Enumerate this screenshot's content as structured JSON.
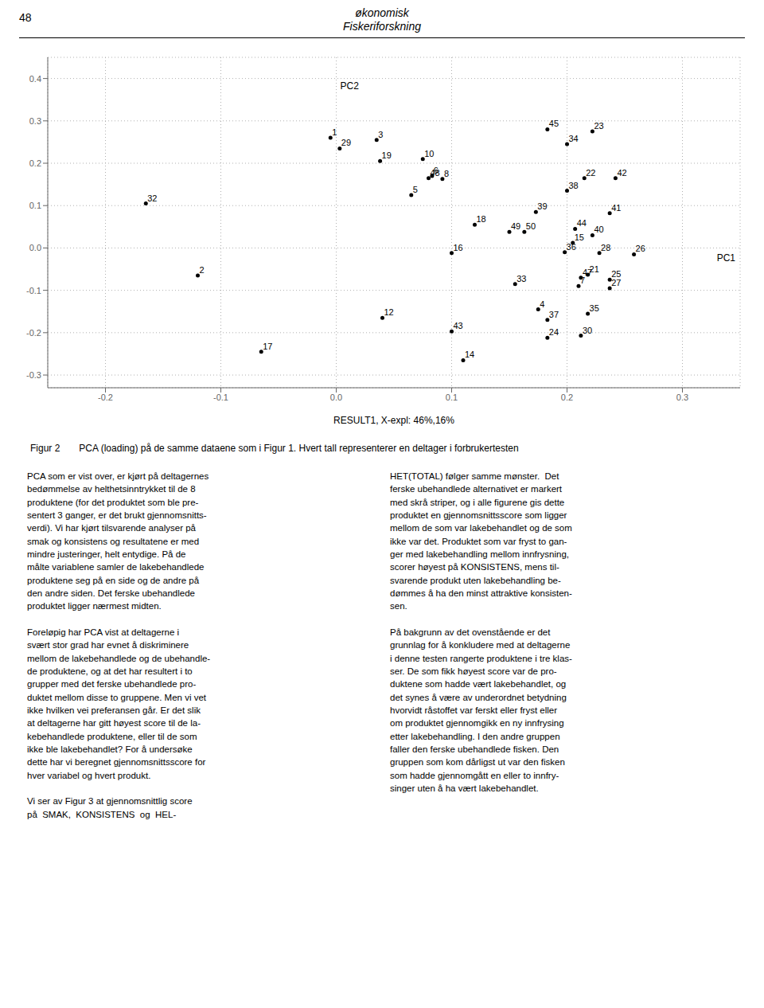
{
  "chart_data": {
    "type": "scatter",
    "title": "økonomisk",
    "subtitle": "Fiskeriforskning",
    "xlabel": "RESULT1, X-expl: 46%,16%",
    "xlim": [
      -0.25,
      0.35
    ],
    "ylim": [
      -0.33,
      0.45
    ],
    "xticks": [
      -0.2,
      -0.1,
      {
        "value": 0,
        "label": "0.0"
      },
      0.1,
      0.2,
      0.3
    ],
    "yticks": [
      -0.3,
      -0.2,
      -0.1,
      {
        "value": 0,
        "label": "0.0"
      },
      0.1,
      0.2,
      0.3,
      0.4
    ],
    "grid": true,
    "color": "#000000",
    "labels": [
      "1",
      "2",
      "3",
      "4",
      "5",
      "6",
      "7",
      "8",
      "10",
      "12",
      "14",
      "15",
      "16",
      "17",
      "18",
      "19",
      "21",
      "22",
      "23",
      "24",
      "25",
      "26",
      "27",
      "28",
      "29",
      "30",
      "32",
      "33",
      "34",
      "35",
      "36",
      "37",
      "38",
      "39",
      "40",
      "41",
      "42",
      "43",
      "44",
      "45",
      "47",
      "48",
      "49",
      "50"
    ],
    "x": [
      -0.005,
      -0.12,
      0.035,
      0.175,
      0.065,
      0.083,
      0.21,
      0.092,
      0.075,
      0.04,
      0.11,
      0.205,
      0.1,
      -0.065,
      0.12,
      0.038,
      0.218,
      0.215,
      0.222,
      0.183,
      0.237,
      0.258,
      0.237,
      0.228,
      0.003,
      0.212,
      -0.165,
      0.155,
      0.2,
      0.218,
      0.198,
      0.183,
      0.2,
      0.173,
      0.222,
      0.237,
      0.242,
      0.1,
      0.207,
      0.183,
      0.212,
      0.08,
      0.15,
      0.163
    ],
    "values": [
      0.26,
      -0.065,
      0.255,
      -0.145,
      0.125,
      0.17,
      -0.09,
      0.163,
      0.21,
      -0.165,
      -0.265,
      0.012,
      -0.012,
      -0.245,
      0.055,
      0.205,
      -0.063,
      0.165,
      0.275,
      -0.212,
      -0.075,
      -0.015,
      -0.095,
      -0.012,
      0.235,
      -0.207,
      0.105,
      -0.085,
      0.245,
      -0.155,
      -0.01,
      -0.17,
      0.135,
      0.085,
      0.03,
      0.082,
      0.165,
      -0.197,
      0.045,
      0.28,
      -0.07,
      0.165,
      0.038,
      0.038
    ],
    "annotations": [
      "48",
      "PC2",
      "PC1",
      "Figur 2",
      "PCA (loading) på de samme dataene som i Figur 1. Hvert tall representerer en deltager i forbrukertesten",
      "PCA som er vist over, er kjørt på deltagernes\nbedømmelse av helthetsinntrykket til de 8\nproduktene (for det produktet som ble pre-\nsentert 3 ganger, er det brukt gjennomsnitts-\nverdi). Vi har kjørt tilsvarende analyser på\nsmak og konsistens og resultatene er med\nmindre justeringer, helt entydige. På de\nmålte variablene samler de lakebehandlede\nproduktene seg på en side og de andre på\nden andre siden. Det ferske ubehandlede\nproduktet ligger nærmest midten.\n\nForeløpig har PCA vist at deltagerne i\nsvært stor grad har evnet å diskriminere\nmellom de lakebehandlede og de ubehandle-\nde produktene, og at det har resultert i to\ngrupper med det ferske ubehandlede pro-\nduktet mellom disse to gruppene. Men vi vet\nikke hvilken vei preferansen går. Er det slik\nat deltagerne har gitt høyest score til de la-\nkebehandlede produktene, eller til de som\nikke ble lakebehandlet? For å undersøke\ndette har vi beregnet gjennomsnittsscore for\nhver variabel og hvert produkt.\n\nVi ser av Figur 3 at gjennomsnittlig score\npå  SMAK,  KONSISTENS  og  HEL-",
      "HET(TOTAL) følger samme mønster.  Det\nferske ubehandlede alternativet er markert\nmed skrå striper, og i alle figurene gis dette\nproduktet en gjennomsnittsscore som ligger\nmellom de som var lakebehandlet og de som\nikke var det. Produktet som var fryst to gan-\nger med lakebehandling mellom innfrysning,\nscorer høyest på KONSISTENS, mens til-\nsvarende produkt uten lakebehandling be-\ndømmes å ha den minst attraktive konsisten-\nsen.\n\nPå bakgrunn av det ovenstående er det\ngrunnlag for å konkludere med at deltagerne\ni denne testen rangerte produktene i tre klas-\nser. De som fikk høyest score var de pro-\nduktene som hadde vært lakebehandlet, og\ndet synes å være av underordnet betydning\nhvorvidt råstoffet var ferskt eller fryst eller\nom produktet gjennomgikk en ny innfrysing\netter lakebehandling. I den andre gruppen\nfaller den ferske ubehandlede fisken. Den\ngruppen som kom dårligst ut var den fisken\nsom hadde gjennomgått en eller to innfry-\nsinger uten å ha vært lakebehandlet."
    ]
  }
}
